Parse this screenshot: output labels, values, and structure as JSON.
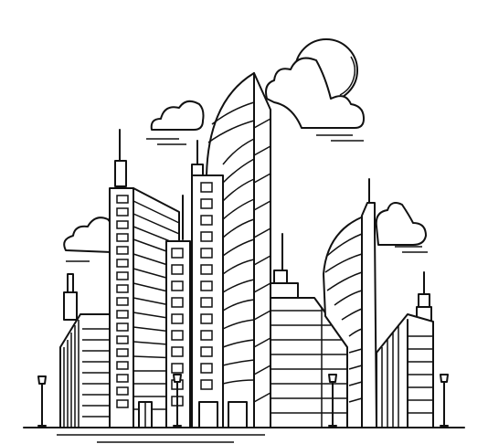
{
  "scene": {
    "subject": "city-skyline-line-art",
    "colors": {
      "stroke": "#111111",
      "background": "#ffffff"
    },
    "elements": [
      "sun-icon",
      "cloud-icon",
      "skyscraper",
      "street-lamp-icon",
      "ground-line"
    ]
  }
}
